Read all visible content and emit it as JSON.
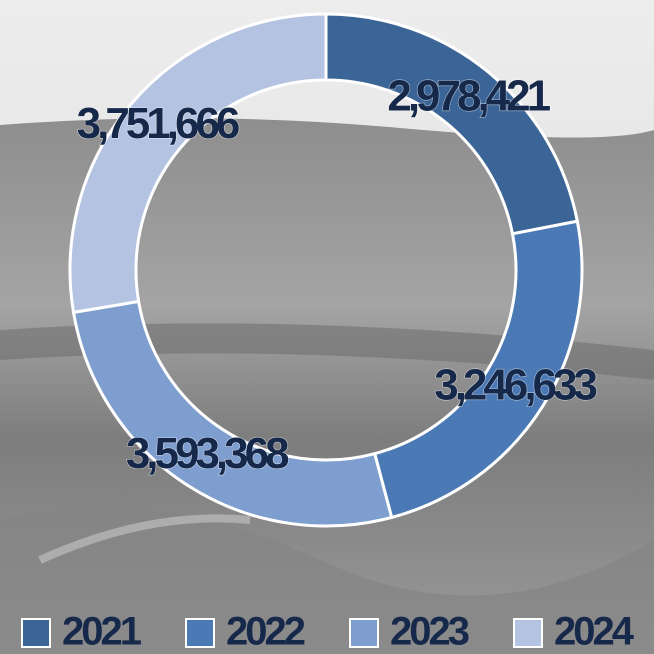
{
  "chart_data": {
    "type": "donut",
    "categories": [
      "2021",
      "2022",
      "2023",
      "2024"
    ],
    "values": [
      2978421,
      3246633,
      3593368,
      3751666
    ],
    "value_labels": [
      "2,978,421",
      "3,246,633",
      "3,593,368",
      "3,751,666"
    ],
    "colors": [
      "#3b6597",
      "#4a79b6",
      "#7e9ecf",
      "#b3c3e1"
    ],
    "legend": "bottom"
  }
}
